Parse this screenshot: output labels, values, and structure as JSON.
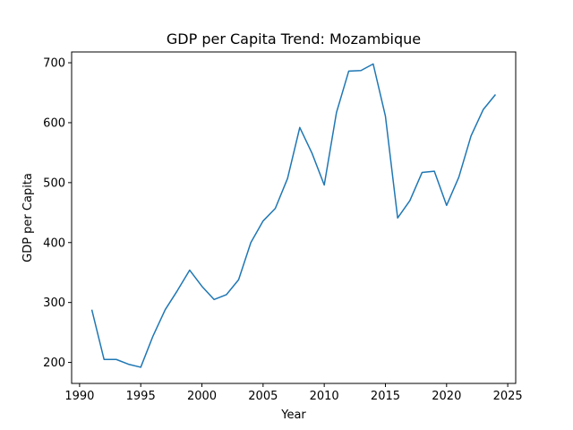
{
  "chart_data": {
    "type": "line",
    "title": "GDP per Capita Trend: Mozambique",
    "xlabel": "Year",
    "ylabel": "GDP per Capita",
    "xlim": [
      1989.35,
      2025.65
    ],
    "ylim": [
      165,
      718
    ],
    "xticks": [
      1990,
      1995,
      2000,
      2005,
      2010,
      2015,
      2020,
      2025
    ],
    "yticks": [
      200,
      300,
      400,
      500,
      600,
      700
    ],
    "grid": false,
    "series": [
      {
        "color": "#1f77b4",
        "x": [
          1991,
          1992,
          1993,
          1994,
          1995,
          1996,
          1997,
          1998,
          1999,
          2000,
          2001,
          2002,
          2003,
          2004,
          2005,
          2006,
          2007,
          2008,
          2009,
          2010,
          2011,
          2012,
          2013,
          2014,
          2015,
          2016,
          2017,
          2018,
          2019,
          2020,
          2021,
          2022,
          2023,
          2024
        ],
        "y": [
          288,
          205,
          205,
          197,
          192,
          244,
          288,
          320,
          354,
          327,
          305,
          313,
          338,
          400,
          436,
          457,
          507,
          592,
          549,
          496,
          617,
          686,
          687,
          698,
          611,
          441,
          470,
          517,
          519,
          462,
          509,
          578,
          622,
          647
        ]
      }
    ]
  }
}
